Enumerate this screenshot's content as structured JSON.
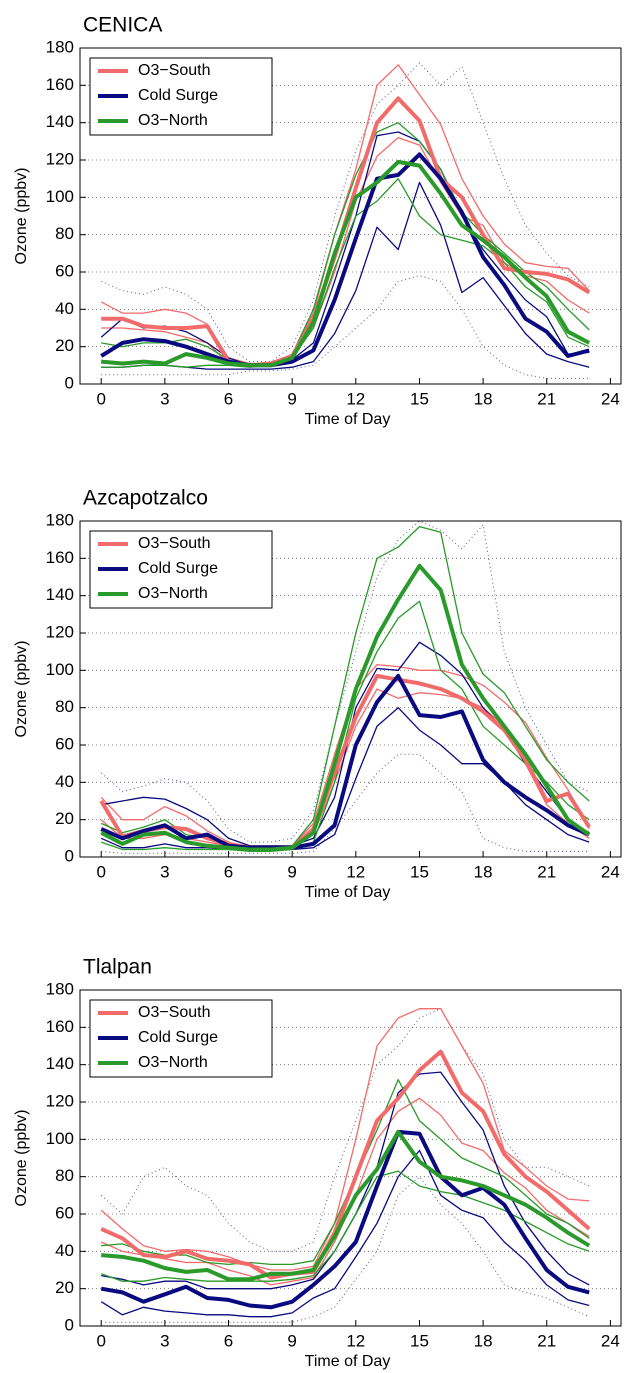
{
  "chart_data": [
    {
      "type": "line",
      "title": "CENICA",
      "xlabel": "Time of Day",
      "ylabel": "Ozone (ppbv)",
      "x": [
        0,
        1,
        2,
        3,
        4,
        5,
        6,
        7,
        8,
        9,
        10,
        11,
        12,
        13,
        14,
        15,
        16,
        17,
        18,
        19,
        20,
        21,
        22,
        23
      ],
      "xlim": [
        -1,
        24.5
      ],
      "ylim": [
        0,
        180
      ],
      "xticks": [
        0,
        3,
        6,
        9,
        12,
        15,
        18,
        21,
        24
      ],
      "yticks": [
        0,
        20,
        40,
        60,
        80,
        100,
        120,
        140,
        160,
        180
      ],
      "grid": "y",
      "legend": "upper left",
      "series": [
        {
          "style": "dotted",
          "color": "#5a5a9a",
          "values": [
            55,
            50,
            48,
            52,
            48,
            40,
            20,
            12,
            12,
            20,
            45,
            90,
            125,
            150,
            160,
            172,
            160,
            170,
            140,
            110,
            85,
            70,
            58,
            52
          ]
        },
        {
          "style": "dotted",
          "color": "#5a5a9a",
          "values": [
            5,
            5,
            5,
            5,
            5,
            5,
            5,
            7,
            7,
            8,
            10,
            20,
            30,
            40,
            55,
            58,
            55,
            40,
            20,
            10,
            5,
            3,
            3,
            3
          ]
        },
        {
          "style": "thin",
          "color": "#f26b6b",
          "values": [
            44,
            38,
            38,
            40,
            38,
            32,
            14,
            11,
            11,
            16,
            38,
            80,
            115,
            160,
            171,
            155,
            139,
            110,
            90,
            75,
            65,
            63,
            62,
            50
          ]
        },
        {
          "style": "thin",
          "color": "#f26b6b",
          "values": [
            30,
            30,
            29,
            28,
            25,
            22,
            11,
            10,
            10,
            14,
            30,
            60,
            98,
            122,
            132,
            128,
            108,
            90,
            85,
            65,
            58,
            55,
            45,
            38
          ]
        },
        {
          "style": "thin",
          "color": "#0a0a80",
          "values": [
            25,
            35,
            30,
            31,
            28,
            22,
            14,
            10,
            10,
            13,
            22,
            55,
            90,
            133,
            135,
            130,
            115,
            90,
            72,
            58,
            45,
            36,
            16,
            17
          ]
        },
        {
          "style": "thin",
          "color": "#0a0a80",
          "values": [
            9,
            9,
            10,
            10,
            9,
            8,
            8,
            8,
            8,
            9,
            12,
            27,
            50,
            84,
            72,
            108,
            85,
            49,
            57,
            42,
            27,
            16,
            12,
            9
          ]
        },
        {
          "style": "thin",
          "color": "#2a9a2a",
          "values": [
            22,
            20,
            22,
            22,
            24,
            20,
            13,
            10,
            10,
            16,
            40,
            80,
            112,
            135,
            140,
            130,
            115,
            92,
            80,
            70,
            60,
            52,
            40,
            29
          ]
        },
        {
          "style": "thin",
          "color": "#2a9a2a",
          "values": [
            9,
            9,
            10,
            10,
            9,
            10,
            10,
            9,
            10,
            14,
            30,
            62,
            90,
            98,
            110,
            90,
            80,
            77,
            74,
            65,
            52,
            44,
            25,
            20
          ]
        },
        {
          "style": "thick",
          "name": "O3−South",
          "color": "#f26b6b",
          "values": [
            35,
            35,
            31,
            30,
            30,
            31,
            12,
            10,
            11,
            15,
            35,
            68,
            105,
            140,
            153,
            141,
            110,
            100,
            80,
            62,
            60,
            59,
            56,
            49
          ]
        },
        {
          "style": "thick",
          "name": "Cold Surge",
          "color": "#0a0a80",
          "values": [
            15,
            22,
            24,
            23,
            20,
            16,
            12,
            10,
            10,
            12,
            18,
            45,
            78,
            110,
            112,
            123,
            110,
            92,
            68,
            53,
            35,
            28,
            15,
            18
          ]
        },
        {
          "style": "thick",
          "name": "O3−North",
          "color": "#2a9a2a",
          "values": [
            12,
            11,
            12,
            11,
            16,
            14,
            11,
            10,
            10,
            14,
            33,
            70,
            100,
            108,
            119,
            117,
            102,
            85,
            77,
            68,
            57,
            47,
            28,
            22
          ]
        }
      ]
    },
    {
      "type": "line",
      "title": "Azcapotzalco",
      "xlabel": "Time of Day",
      "ylabel": "Ozone (ppbv)",
      "x": [
        0,
        1,
        2,
        3,
        4,
        5,
        6,
        7,
        8,
        9,
        10,
        11,
        12,
        13,
        14,
        15,
        16,
        17,
        18,
        19,
        20,
        21,
        22,
        23
      ],
      "xlim": [
        -1,
        24.5
      ],
      "ylim": [
        0,
        180
      ],
      "xticks": [
        0,
        3,
        6,
        9,
        12,
        15,
        18,
        21,
        24
      ],
      "yticks": [
        0,
        20,
        40,
        60,
        80,
        100,
        120,
        140,
        160,
        180
      ],
      "grid": "y",
      "legend": "upper left",
      "series": [
        {
          "style": "dotted",
          "color": "#5a5a9a",
          "values": [
            45,
            35,
            38,
            42,
            40,
            30,
            15,
            8,
            8,
            10,
            25,
            70,
            110,
            150,
            170,
            180,
            175,
            165,
            178,
            110,
            80,
            60,
            40,
            35
          ]
        },
        {
          "style": "dotted",
          "color": "#5a5a9a",
          "values": [
            3,
            2,
            2,
            2,
            2,
            2,
            2,
            2,
            2,
            2,
            3,
            15,
            30,
            45,
            55,
            55,
            45,
            35,
            10,
            5,
            3,
            3,
            3,
            3
          ]
        },
        {
          "style": "thin",
          "color": "#f26b6b",
          "values": [
            32,
            20,
            20,
            27,
            22,
            14,
            8,
            5,
            5,
            6,
            18,
            55,
            90,
            103,
            102,
            100,
            100,
            97,
            92,
            83,
            72,
            53,
            36,
            15
          ]
        },
        {
          "style": "thin",
          "color": "#f26b6b",
          "values": [
            20,
            10,
            10,
            12,
            10,
            8,
            6,
            4,
            4,
            5,
            12,
            40,
            70,
            90,
            85,
            88,
            87,
            85,
            80,
            70,
            50,
            28,
            18,
            10
          ]
        },
        {
          "style": "thin",
          "color": "#0a0a80",
          "values": [
            28,
            30,
            32,
            31,
            26,
            20,
            10,
            6,
            6,
            6,
            10,
            32,
            80,
            101,
            100,
            115,
            108,
            98,
            80,
            68,
            50,
            35,
            20,
            13
          ]
        },
        {
          "style": "thin",
          "color": "#0a0a80",
          "values": [
            10,
            5,
            5,
            7,
            5,
            5,
            4,
            4,
            4,
            4,
            5,
            12,
            42,
            70,
            80,
            68,
            60,
            50,
            50,
            40,
            28,
            20,
            12,
            8
          ]
        },
        {
          "style": "thin",
          "color": "#2a9a2a",
          "values": [
            18,
            13,
            16,
            20,
            12,
            10,
            6,
            5,
            5,
            6,
            20,
            70,
            120,
            160,
            166,
            177,
            174,
            120,
            98,
            88,
            70,
            52,
            40,
            30
          ]
        },
        {
          "style": "thin",
          "color": "#2a9a2a",
          "values": [
            8,
            4,
            4,
            5,
            4,
            4,
            4,
            3,
            3,
            4,
            8,
            40,
            85,
            110,
            128,
            137,
            100,
            90,
            70,
            60,
            50,
            40,
            28,
            20
          ]
        },
        {
          "style": "thick",
          "name": "O3−South",
          "color": "#f26b6b",
          "values": [
            30,
            11,
            14,
            16,
            15,
            10,
            7,
            5,
            5,
            5,
            15,
            45,
            75,
            97,
            95,
            93,
            90,
            85,
            78,
            68,
            52,
            30,
            34,
            16
          ]
        },
        {
          "style": "thick",
          "name": "Cold Surge",
          "color": "#0a0a80",
          "values": [
            15,
            10,
            14,
            17,
            10,
            12,
            6,
            5,
            5,
            5,
            7,
            17,
            60,
            83,
            97,
            76,
            75,
            78,
            52,
            40,
            32,
            25,
            17,
            12
          ]
        },
        {
          "style": "thick",
          "name": "O3−North",
          "color": "#2a9a2a",
          "values": [
            13,
            7,
            12,
            13,
            8,
            6,
            5,
            4,
            4,
            5,
            13,
            50,
            90,
            118,
            138,
            156,
            143,
            103,
            85,
            70,
            55,
            38,
            20,
            12
          ]
        }
      ]
    },
    {
      "type": "line",
      "title": "Tlalpan",
      "xlabel": "Time of Day",
      "ylabel": "Ozone (ppbv)",
      "x": [
        0,
        1,
        2,
        3,
        4,
        5,
        6,
        7,
        8,
        9,
        10,
        11,
        12,
        13,
        14,
        15,
        16,
        17,
        18,
        19,
        20,
        21,
        22,
        23
      ],
      "xlim": [
        -1,
        24.5
      ],
      "ylim": [
        0,
        180
      ],
      "xticks": [
        0,
        3,
        6,
        9,
        12,
        15,
        18,
        21,
        24
      ],
      "yticks": [
        0,
        20,
        40,
        60,
        80,
        100,
        120,
        140,
        160,
        180
      ],
      "grid": "y",
      "legend": "upper left",
      "series": [
        {
          "style": "dotted",
          "color": "#5a5a9a",
          "values": [
            70,
            60,
            80,
            85,
            75,
            70,
            55,
            45,
            40,
            40,
            45,
            80,
            110,
            140,
            150,
            165,
            170,
            150,
            135,
            100,
            85,
            85,
            80,
            75
          ]
        },
        {
          "style": "dotted",
          "color": "#5a5a9a",
          "values": [
            2,
            2,
            2,
            2,
            2,
            2,
            2,
            2,
            2,
            2,
            5,
            10,
            25,
            40,
            70,
            80,
            65,
            55,
            40,
            22,
            18,
            15,
            10,
            5
          ]
        },
        {
          "style": "thin",
          "color": "#f26b6b",
          "values": [
            62,
            52,
            43,
            40,
            41,
            40,
            37,
            33,
            30,
            30,
            32,
            55,
            100,
            150,
            165,
            170,
            170,
            150,
            130,
            94,
            85,
            75,
            68,
            67
          ]
        },
        {
          "style": "thin",
          "color": "#f26b6b",
          "values": [
            45,
            40,
            38,
            36,
            34,
            34,
            30,
            27,
            22,
            24,
            26,
            45,
            70,
            100,
            115,
            122,
            113,
            98,
            94,
            82,
            74,
            62,
            55,
            48
          ]
        },
        {
          "style": "thin",
          "color": "#0a0a80",
          "values": [
            27,
            25,
            22,
            24,
            24,
            20,
            20,
            20,
            20,
            22,
            25,
            40,
            60,
            85,
            125,
            135,
            136,
            120,
            105,
            75,
            55,
            40,
            28,
            22
          ]
        },
        {
          "style": "thin",
          "color": "#0a0a80",
          "values": [
            13,
            6,
            10,
            8,
            7,
            6,
            6,
            5,
            5,
            7,
            15,
            20,
            37,
            55,
            80,
            94,
            70,
            62,
            58,
            45,
            35,
            22,
            14,
            11
          ]
        },
        {
          "style": "thin",
          "color": "#2a9a2a",
          "values": [
            43,
            44,
            40,
            38,
            38,
            34,
            33,
            34,
            33,
            33,
            35,
            55,
            80,
            105,
            132,
            110,
            100,
            90,
            85,
            80,
            70,
            60,
            55,
            47
          ]
        },
        {
          "style": "thin",
          "color": "#2a9a2a",
          "values": [
            28,
            24,
            24,
            26,
            25,
            24,
            24,
            24,
            24,
            25,
            27,
            40,
            60,
            80,
            83,
            75,
            72,
            70,
            66,
            62,
            56,
            50,
            44,
            40
          ]
        },
        {
          "style": "thick",
          "name": "O3−South",
          "color": "#f26b6b",
          "values": [
            52,
            47,
            38,
            37,
            40,
            36,
            35,
            33,
            26,
            28,
            29,
            50,
            80,
            110,
            122,
            137,
            147,
            125,
            115,
            92,
            80,
            72,
            62,
            52
          ]
        },
        {
          "style": "thick",
          "name": "Cold Surge",
          "color": "#0a0a80",
          "values": [
            20,
            18,
            13,
            17,
            21,
            15,
            14,
            11,
            10,
            13,
            22,
            32,
            45,
            75,
            104,
            103,
            80,
            70,
            74,
            65,
            47,
            30,
            21,
            18
          ]
        },
        {
          "style": "thick",
          "name": "O3−North",
          "color": "#2a9a2a",
          "values": [
            38,
            37,
            35,
            31,
            29,
            30,
            25,
            25,
            28,
            28,
            30,
            48,
            70,
            84,
            104,
            88,
            80,
            78,
            75,
            70,
            65,
            58,
            50,
            43
          ]
        }
      ]
    }
  ]
}
